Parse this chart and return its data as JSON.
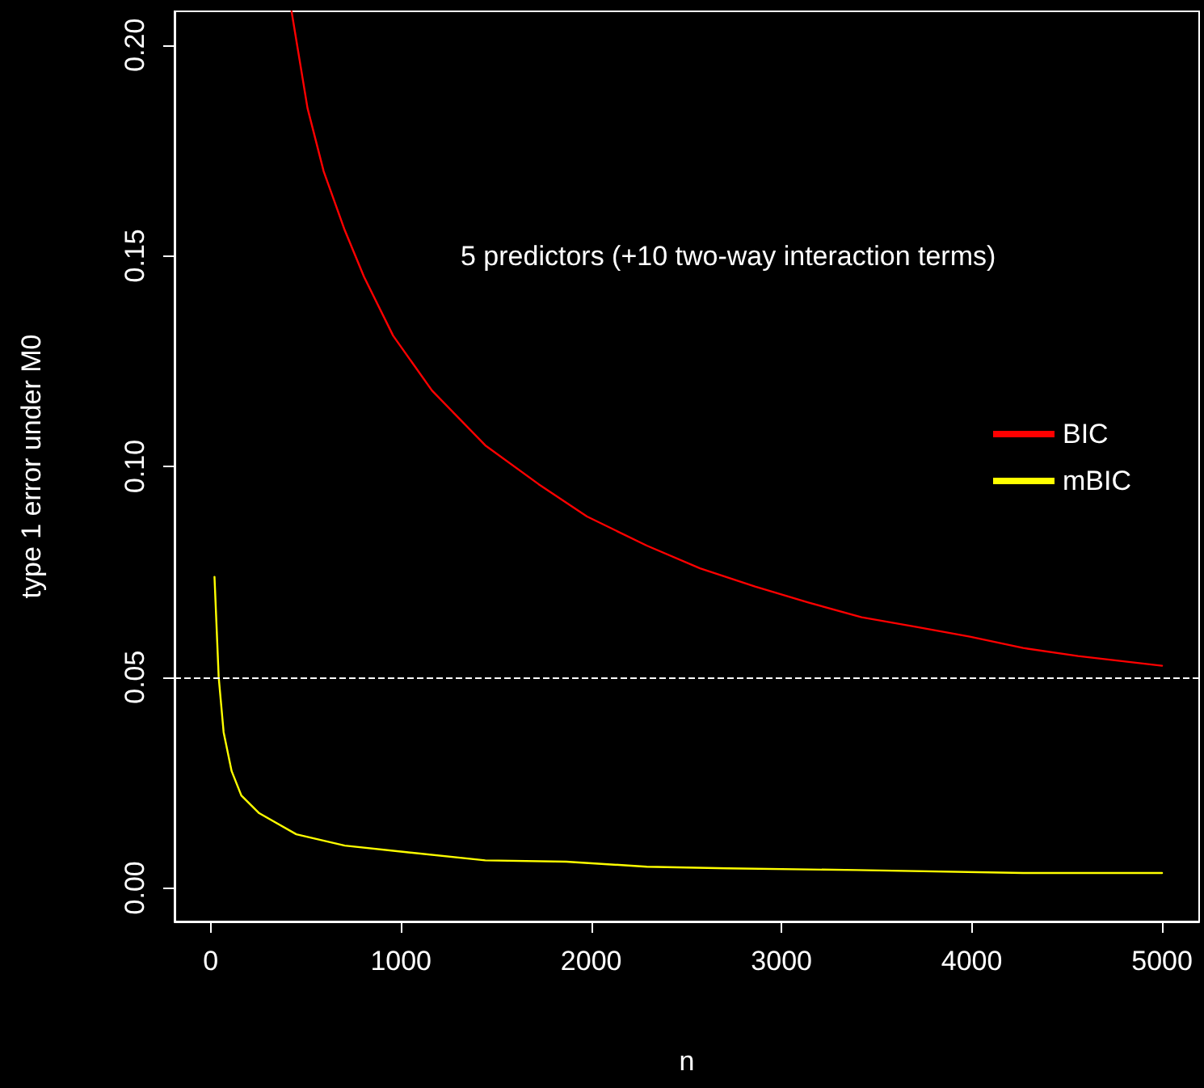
{
  "chart_data": {
    "type": "line",
    "xlabel": "n",
    "ylabel": "type 1 error under M0",
    "annotations": [
      "5 predictors (+10 two-way interaction terms)"
    ],
    "xlim": [
      -190,
      5195
    ],
    "ylim": [
      -0.008,
      0.208
    ],
    "xticks": [
      0,
      1000,
      2000,
      3000,
      4000,
      5000
    ],
    "yticks": [
      {
        "value": 0,
        "label": "0.00"
      },
      {
        "value": 0.05,
        "label": "0.05"
      },
      {
        "value": 0.1,
        "label": "0.10"
      },
      {
        "value": 0.15,
        "label": "0.15"
      },
      {
        "value": 0.2,
        "label": "0.20"
      }
    ],
    "series": [
      {
        "name": "BIC",
        "color": "#ff0000",
        "x": [
          425,
          509,
          594,
          705,
          806,
          959,
          1163,
          1443,
          1723,
          1978,
          2292,
          2572,
          2861,
          3141,
          3421,
          3710,
          3990,
          4270,
          4559,
          5000
        ],
        "values": [
          0.208,
          0.185,
          0.17,
          0.156,
          0.145,
          0.131,
          0.118,
          0.105,
          0.0958,
          0.0881,
          0.0812,
          0.0758,
          0.0715,
          0.0677,
          0.0642,
          0.0619,
          0.0596,
          0.0569,
          0.055,
          0.0527
        ]
      },
      {
        "name": "mBIC",
        "color": "#ffff00",
        "x": [
          20,
          42,
          68,
          110,
          161,
          255,
          450,
          705,
          1019,
          1443,
          1868,
          2292,
          2716,
          3396,
          4270,
          5000
        ],
        "values": [
          0.0738,
          0.05,
          0.0369,
          0.0277,
          0.0219,
          0.0177,
          0.0127,
          0.01,
          0.0085,
          0.0065,
          0.0062,
          0.005,
          0.0046,
          0.0042,
          0.0035,
          0.0035
        ]
      }
    ],
    "ref_lines": [
      {
        "axis": "y",
        "value": 0.05,
        "color": "#ffffff",
        "line_style": "dashed"
      }
    ],
    "legend": "right",
    "grid": false,
    "marker": "none",
    "line_style": "solid"
  }
}
